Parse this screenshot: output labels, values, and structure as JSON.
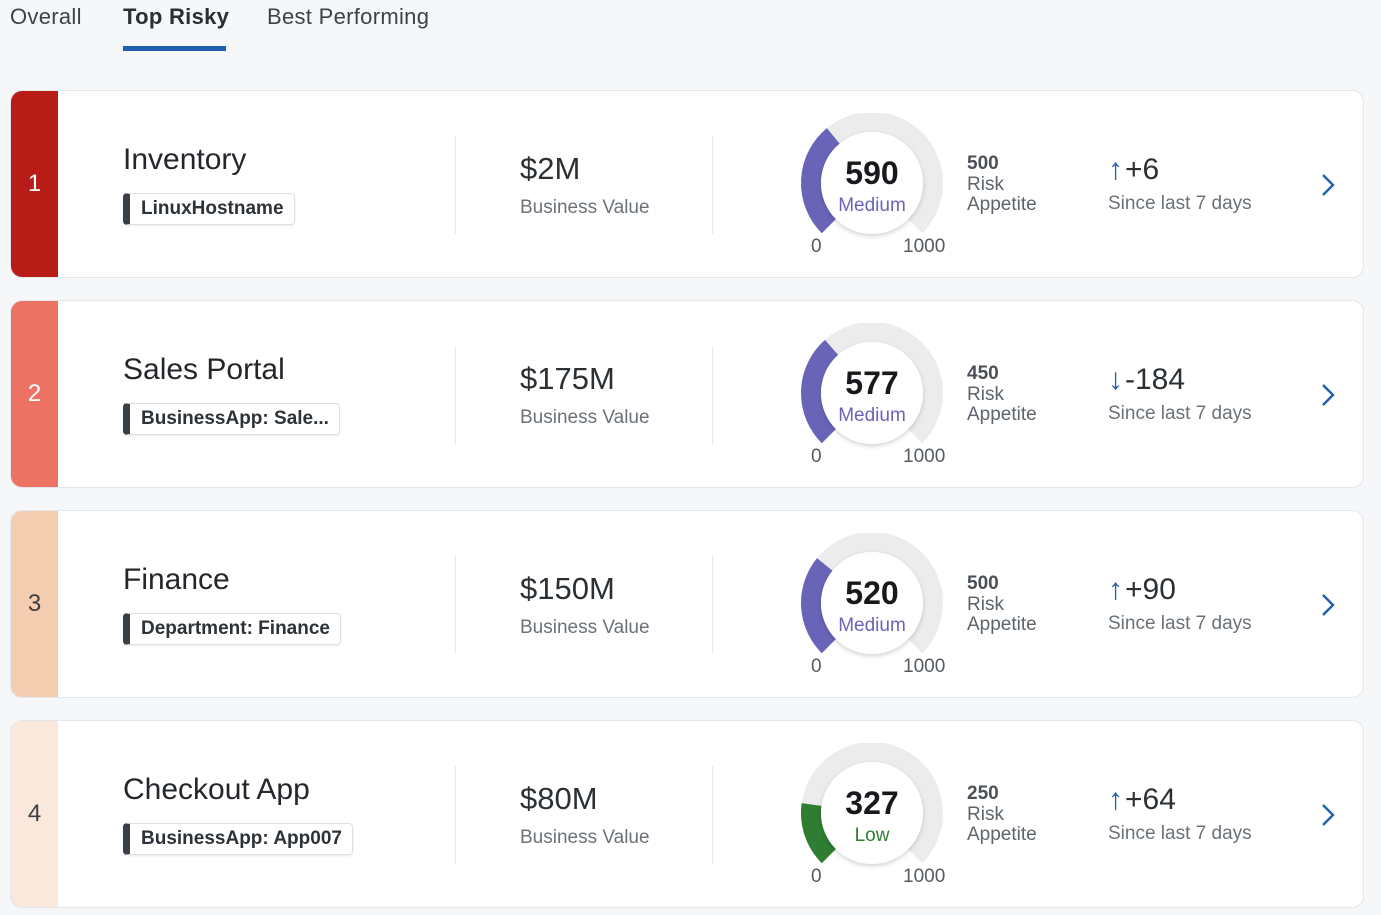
{
  "tabs": [
    {
      "label": "Overall"
    },
    {
      "label": "Top Risky"
    },
    {
      "label": "Best Performing"
    }
  ],
  "cards": [
    {
      "rank": "1",
      "rank_color": "#b71c17",
      "rank_text_color": "#ffffff",
      "name": "Inventory",
      "tag": "LinuxHostname",
      "value": "$2M",
      "value_label": "Business Value",
      "score": "590",
      "score_fraction": 0.59,
      "level": "Medium",
      "level_color": "#6a64b8",
      "gauge_min": "0",
      "gauge_max": "1000",
      "appetite": "500",
      "appetite_label": "Risk Appetite",
      "trend_arrow": "↑",
      "trend_value": "+6",
      "trend_label": "Since last 7 days"
    },
    {
      "rank": "2",
      "rank_color": "#ec7363",
      "rank_text_color": "#ffffff",
      "name": "Sales Portal",
      "tag": "BusinessApp: Sale...",
      "value": "$175M",
      "value_label": "Business Value",
      "score": "577",
      "score_fraction": 0.577,
      "level": "Medium",
      "level_color": "#6a64b8",
      "gauge_min": "0",
      "gauge_max": "1000",
      "appetite": "450",
      "appetite_label": "Risk Appetite",
      "trend_arrow": "↓",
      "trend_value": "-184",
      "trend_label": "Since last 7 days"
    },
    {
      "rank": "3",
      "rank_color": "#f5cdb0",
      "rank_text_color": "#3a3f45",
      "name": "Finance",
      "tag": "Department: Finance",
      "value": "$150M",
      "value_label": "Business Value",
      "score": "520",
      "score_fraction": 0.52,
      "level": "Medium",
      "level_color": "#6a64b8",
      "gauge_min": "0",
      "gauge_max": "1000",
      "appetite": "500",
      "appetite_label": "Risk Appetite",
      "trend_arrow": "↑",
      "trend_value": "+90",
      "trend_label": "Since last 7 days"
    },
    {
      "rank": "4",
      "rank_color": "#fae8dc",
      "rank_text_color": "#3a3f45",
      "name": "Checkout App",
      "tag": "BusinessApp: App007",
      "value": "$80M",
      "value_label": "Business Value",
      "score": "327",
      "score_fraction": 0.327,
      "level": "Low",
      "level_color": "#2e7d32",
      "gauge_min": "0",
      "gauge_max": "1000",
      "appetite": "250",
      "appetite_label": "Risk Appetite",
      "trend_arrow": "↑",
      "trend_value": "+64",
      "trend_label": "Since last 7 days"
    }
  ]
}
